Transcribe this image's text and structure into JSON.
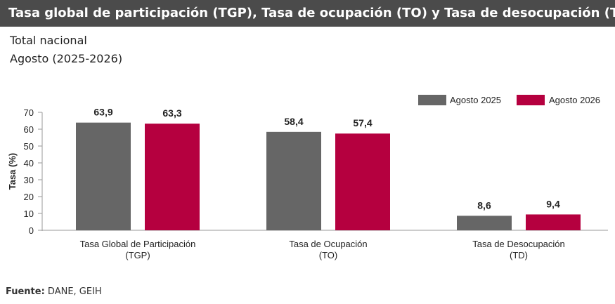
{
  "header": {
    "title": "Tasa global de participación (TGP), Tasa de ocupación (TO) y Tasa de desocupación (TD)",
    "subtitle_1": "Total nacional",
    "subtitle_2": "Agosto (2025-2026)"
  },
  "footer": {
    "source_label": "Fuente:",
    "source_value": " DANE, GEIH"
  },
  "colors": {
    "series_2025": "#666666",
    "series_2026": "#b5003f"
  },
  "chart_data": {
    "type": "bar",
    "ylabel": "Tasa (%)",
    "ylim": [
      0,
      70
    ],
    "yticks": [
      0,
      10,
      20,
      30,
      40,
      50,
      60,
      70
    ],
    "legend_position": "top-right",
    "grid": false,
    "categories": [
      [
        "Tasa Global de Participación",
        "(TGP)"
      ],
      [
        "Tasa de Ocupación",
        "(TO)"
      ],
      [
        "Tasa de Desocupación",
        "(TD)"
      ]
    ],
    "series": [
      {
        "name": "Agosto  2025",
        "values": [
          63.9,
          58.4,
          8.6
        ],
        "labels": [
          "63,9",
          "58,4",
          "8,6"
        ]
      },
      {
        "name": "Agosto  2026",
        "values": [
          63.3,
          57.4,
          9.4
        ],
        "labels": [
          "63,3",
          "57,4",
          "9,4"
        ]
      }
    ]
  }
}
